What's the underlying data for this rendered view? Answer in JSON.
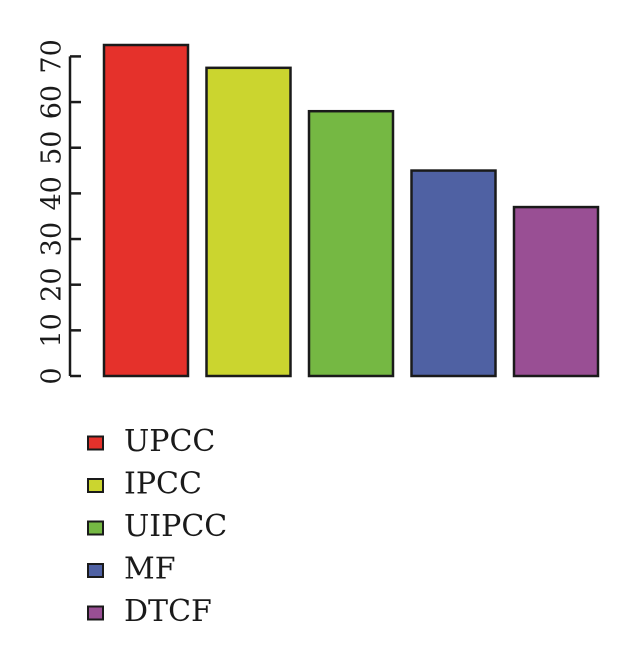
{
  "chart_data": {
    "type": "bar",
    "categories": [
      "UPCC",
      "IPCC",
      "UIPCC",
      "MF",
      "DTCF"
    ],
    "values": [
      72.5,
      67.5,
      58,
      45,
      37
    ],
    "colors": [
      "#e5312b",
      "#cbd52f",
      "#75b843",
      "#4f61a3",
      "#994f94"
    ],
    "ylim": [
      0,
      72.5
    ],
    "yticks": [
      0,
      10,
      20,
      30,
      40,
      50,
      60,
      70
    ],
    "ytick_labels": [
      "0",
      "10",
      "20",
      "30",
      "40",
      "50",
      "60",
      "70"
    ],
    "grid": false,
    "legend": {
      "placement": "bottom-left",
      "entries": [
        "UPCC",
        "IPCC",
        "UIPCC",
        "MF",
        "DTCF"
      ]
    },
    "title": "",
    "xlabel": "",
    "ylabel": ""
  }
}
